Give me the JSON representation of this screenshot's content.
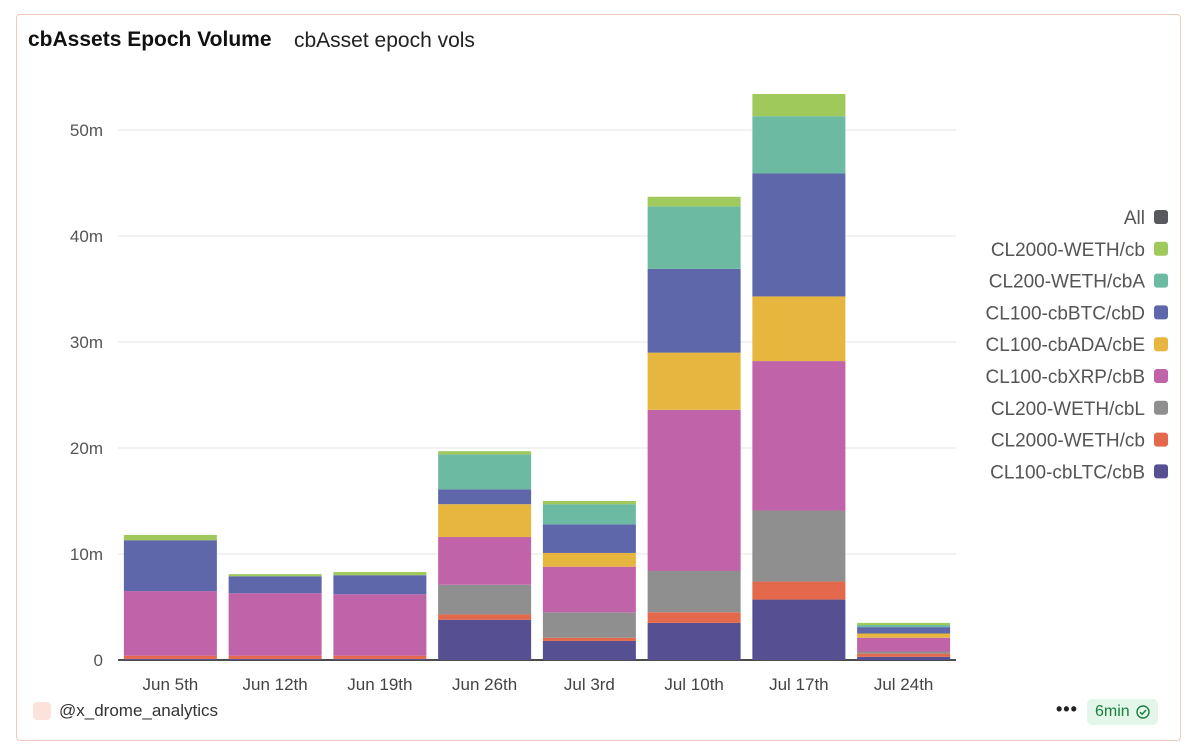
{
  "header": {
    "title": "cbAssets Epoch Volume",
    "subtitle": "cbAsset epoch vols"
  },
  "footer": {
    "author": "@x_drome_analytics",
    "more_label": "•••",
    "refresh_label": "6min"
  },
  "colors": {
    "CL100-cbLTC/cbBTC": "#564f92",
    "CL2000-WETH/cbETH": "#e4694c",
    "CL200-WETH/cbLTC": "#8f8f8f",
    "CL100-cbXRP/cbBTC": "#c063a9",
    "CL100-cbADA/cbBTC": "#e7b63e",
    "CL100-cbBTC/cbDOGE": "#5f67ab",
    "CL200-WETH/cbADA": "#6dbaa3",
    "CL2000-WETH/cbBTC": "#9fc95a",
    "All": "#58585f"
  },
  "chart_data": {
    "type": "bar",
    "stacked": true,
    "categories": [
      "Jun 5th",
      "Jun 12th",
      "Jun 19th",
      "Jun 26th",
      "Jul 3rd",
      "Jul 10th",
      "Jul 17th",
      "Jul 24th"
    ],
    "y_ticks": [
      "0",
      "10m",
      "20m",
      "30m",
      "40m",
      "50m"
    ],
    "ylim": [
      0,
      55000000
    ],
    "grid": true,
    "legend_position": "right",
    "legend": [
      "All",
      "CL2000-WETH/cb",
      "CL200-WETH/cbA",
      "CL100-cbBTC/cbD",
      "CL100-cbADA/cbE",
      "CL100-cbXRP/cbB",
      "CL200-WETH/cbL",
      "CL2000-WETH/cb",
      "CL100-cbLTC/cbB"
    ],
    "series": [
      {
        "key": "CL100-cbLTC/cbBTC",
        "values": [
          0.1,
          0.1,
          0.1,
          3.8,
          1.8,
          3.5,
          5.7,
          0.3
        ]
      },
      {
        "key": "CL2000-WETH/cbETH",
        "values": [
          0.3,
          0.3,
          0.3,
          0.5,
          0.3,
          1.0,
          1.7,
          0.3
        ]
      },
      {
        "key": "CL200-WETH/cbLTC",
        "values": [
          0,
          0,
          0,
          2.8,
          2.4,
          3.9,
          6.7,
          0.2
        ]
      },
      {
        "key": "CL100-cbXRP/cbBTC",
        "values": [
          6.1,
          5.9,
          5.8,
          4.5,
          4.3,
          15.2,
          14.1,
          1.3
        ]
      },
      {
        "key": "CL100-cbADA/cbBTC",
        "values": [
          0,
          0,
          0,
          3.1,
          1.3,
          5.4,
          6.1,
          0.4
        ]
      },
      {
        "key": "CL100-cbBTC/cbDOGE",
        "values": [
          4.8,
          1.6,
          1.8,
          1.4,
          2.7,
          7.9,
          11.6,
          0.6
        ]
      },
      {
        "key": "CL200-WETH/cbADA",
        "values": [
          0,
          0,
          0,
          3.3,
          1.9,
          5.9,
          5.4,
          0.2
        ]
      },
      {
        "key": "CL2000-WETH/cbBTC",
        "values": [
          0.5,
          0.2,
          0.3,
          0.3,
          0.3,
          0.9,
          2.1,
          0.2
        ]
      }
    ],
    "value_unit": "millions"
  }
}
